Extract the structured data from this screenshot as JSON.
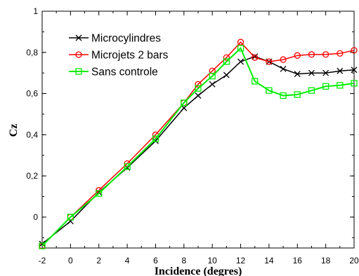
{
  "chart_data": {
    "type": "line",
    "title": "",
    "xlabel": "Incidence (degres)",
    "ylabel": "Cz",
    "xlim": [
      -2,
      20
    ],
    "ylim": [
      -0.15,
      1
    ],
    "xticks": [
      -2,
      0,
      2,
      4,
      6,
      8,
      10,
      12,
      14,
      16,
      18,
      20
    ],
    "xtick_labels": [
      "-2",
      "0",
      "2",
      "4",
      "6",
      "8",
      "10",
      "12",
      "14",
      "16",
      "18",
      "20"
    ],
    "yticks": [
      0,
      0.2,
      0.4,
      0.6,
      0.8,
      1
    ],
    "ytick_labels": [
      "0",
      "0,2",
      "0,4",
      "0,6",
      "0,8",
      "1"
    ],
    "grid": false,
    "legend_position": "top-left",
    "series": [
      {
        "name": "Microcylindres",
        "color": "#000000",
        "marker": "x",
        "x": [
          -2,
          0,
          2,
          4,
          6,
          8,
          9,
          10,
          11,
          12,
          13,
          14,
          15,
          16,
          17,
          18,
          19,
          20
        ],
        "y": [
          -0.13,
          -0.02,
          0.12,
          0.24,
          0.37,
          0.53,
          0.59,
          0.645,
          0.69,
          0.755,
          0.78,
          0.755,
          0.72,
          0.695,
          0.7,
          0.7,
          0.71,
          0.715
        ]
      },
      {
        "name": "Microjets 2 bars",
        "color": "#ff0000",
        "marker": "circle",
        "x": [
          -2,
          0,
          2,
          4,
          6,
          8,
          9,
          10,
          11,
          12,
          13,
          14,
          15,
          16,
          17,
          18,
          19,
          20
        ],
        "y": [
          -0.14,
          0.0,
          0.13,
          0.26,
          0.4,
          0.555,
          0.645,
          0.71,
          0.775,
          0.85,
          0.775,
          0.755,
          0.765,
          0.785,
          0.79,
          0.79,
          0.795,
          0.81
        ]
      },
      {
        "name": "Sans controle",
        "color": "#00ee00",
        "marker": "square",
        "x": [
          -2,
          0,
          2,
          4,
          6,
          8,
          9,
          10,
          11,
          12,
          13,
          14,
          15,
          16,
          17,
          18,
          19,
          20
        ],
        "y": [
          -0.14,
          0.0,
          0.115,
          0.245,
          0.38,
          0.555,
          0.625,
          0.685,
          0.755,
          0.82,
          0.66,
          0.615,
          0.59,
          0.595,
          0.615,
          0.635,
          0.64,
          0.65
        ]
      }
    ]
  }
}
